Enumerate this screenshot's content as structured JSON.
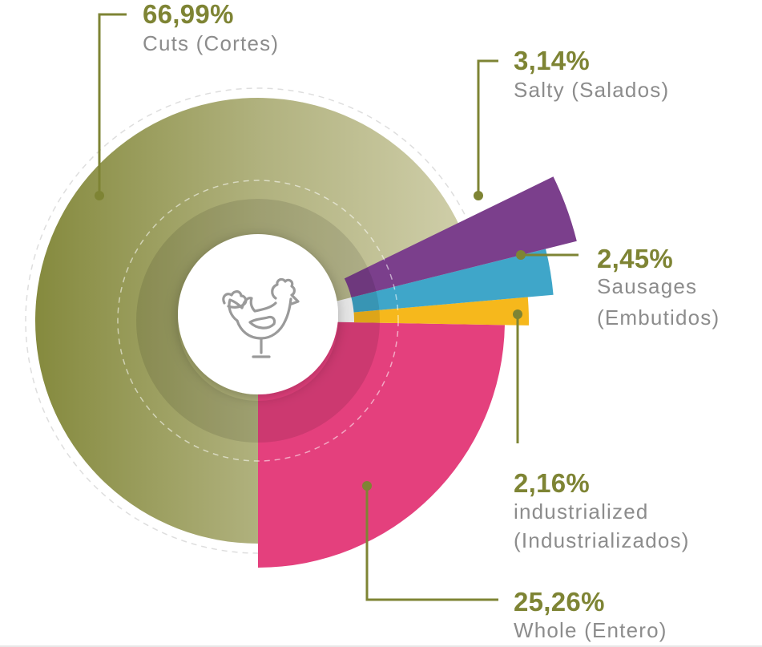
{
  "chart_data": {
    "type": "pie",
    "center_icon": "chicken-icon",
    "slices": [
      {
        "key": "cuts",
        "value": 66.99,
        "value_label": "66,99%",
        "label": "Cuts  (Cortes)",
        "color": "#9a9d62"
      },
      {
        "key": "salty",
        "value": 3.14,
        "value_label": "3,14%",
        "label": "Salty  (Salados)",
        "color": "#7b3f8c"
      },
      {
        "key": "sausages",
        "value": 2.45,
        "value_label": "2,45%",
        "label_lines": [
          "Sausages",
          "(Embutidos)"
        ],
        "color": "#3fa6c9"
      },
      {
        "key": "industrialized",
        "value": 2.16,
        "value_label": "2,16%",
        "label_lines": [
          "industrialized",
          "(Industrializados)"
        ],
        "color": "#f6b81c"
      },
      {
        "key": "whole",
        "value": 25.26,
        "value_label": "25,26%",
        "label": "Whole  (Entero)",
        "color": "#e4407d"
      }
    ],
    "leader_color": "#7e8434"
  }
}
